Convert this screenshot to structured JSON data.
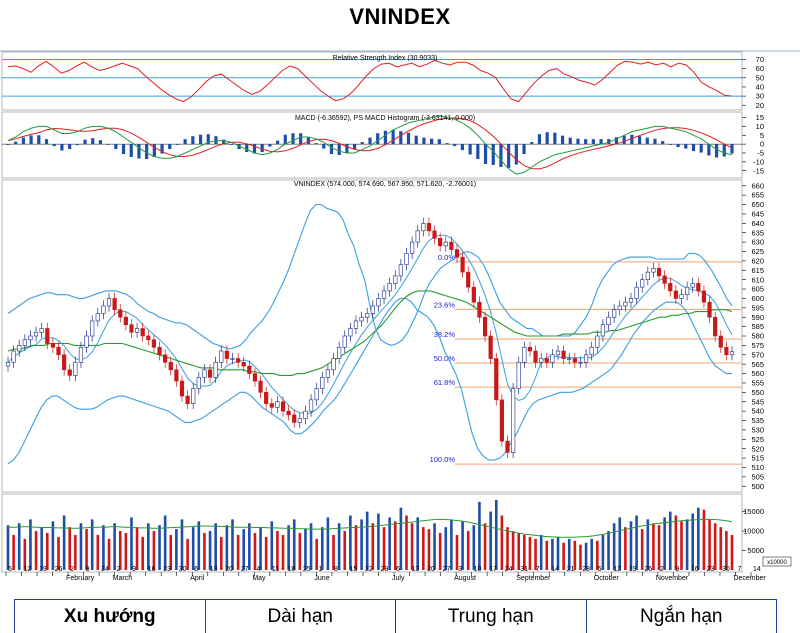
{
  "title": "VNINDEX",
  "chart_data": {
    "type": "candlestick",
    "panels": {
      "rsi": {
        "label": "Relative Strength Index (30.9033)",
        "ticks": [
          70,
          60,
          50,
          40,
          30,
          20
        ],
        "levels": [
          70,
          50,
          30
        ],
        "ylim": [
          17,
          76
        ],
        "values": [
          62,
          63,
          60,
          56,
          63,
          68,
          62,
          55,
          58,
          63,
          67,
          62,
          58,
          60,
          63,
          66,
          63,
          60,
          52,
          45,
          38,
          32,
          27,
          24,
          29,
          37,
          46,
          52,
          54,
          48,
          42,
          36,
          32,
          35,
          42,
          50,
          58,
          63,
          60,
          52,
          44,
          36,
          30,
          25,
          27,
          33,
          42,
          52,
          60,
          65,
          66,
          62,
          64,
          66,
          62,
          65,
          69,
          66,
          64,
          67,
          67,
          64,
          58,
          55,
          50,
          38,
          27,
          24,
          34,
          44,
          52,
          58,
          60,
          54,
          51,
          47,
          45,
          42,
          48,
          56,
          64,
          68,
          67,
          65,
          67,
          64,
          66,
          62,
          66,
          64,
          56,
          45,
          40,
          36,
          31,
          30
        ]
      },
      "macd": {
        "label": "MACD (-6.36592), PS MACD Histogram (-3.63141, 0.000)",
        "ticks": [
          15,
          10,
          5,
          0,
          -5,
          -10,
          -15
        ],
        "ylim": [
          -18,
          17
        ],
        "macd": [
          2,
          4,
          7,
          9,
          10,
          10,
          8,
          6,
          6,
          7,
          9,
          10,
          10,
          9,
          7,
          4,
          1,
          -2,
          -5,
          -7,
          -8,
          -8,
          -7,
          -5,
          -3,
          -1,
          1,
          2,
          2,
          1,
          -1,
          -3,
          -5,
          -6,
          -5,
          -3,
          0,
          2,
          4,
          4,
          3,
          1,
          -2,
          -4,
          -5,
          -5,
          -3,
          -1,
          2,
          5,
          8,
          10,
          12,
          13,
          14,
          15,
          16,
          15,
          14,
          12,
          9,
          5,
          0,
          -4,
          -9,
          -14,
          -17,
          -16,
          -13,
          -10,
          -8,
          -6,
          -5,
          -4,
          -3,
          -2,
          -1,
          0,
          1,
          3,
          5,
          7,
          8,
          9,
          10,
          10,
          9,
          8,
          7,
          5,
          3,
          0,
          -3,
          -5,
          -6
        ]
      },
      "price": {
        "label": "VNINDEX (574.000, 574.690, 567.950, 571.620, -2.76001)",
        "ticks": [
          660,
          655,
          650,
          645,
          640,
          635,
          630,
          625,
          620,
          615,
          610,
          605,
          600,
          595,
          590,
          585,
          580,
          575,
          570,
          565,
          560,
          555,
          550,
          545,
          540,
          535,
          530,
          525,
          520,
          515,
          510,
          505,
          500
        ],
        "ylim": [
          498,
          662
        ],
        "fib_levels": [
          {
            "label": "0.0%",
            "value": 619.5
          },
          {
            "label": "23.6%",
            "value": 594.2
          },
          {
            "label": "38.2%",
            "value": 578.4
          },
          {
            "label": "50.0%",
            "value": 565.6
          },
          {
            "label": "61.8%",
            "value": 552.8
          },
          {
            "label": "100.0%",
            "value": 511.8
          }
        ],
        "close": [
          566,
          572,
          575,
          578,
          580,
          582,
          584,
          576,
          574,
          570,
          562,
          559,
          566,
          574,
          580,
          588,
          592,
          596,
          600,
          594,
          590,
          586,
          582,
          584,
          580,
          578,
          574,
          570,
          566,
          562,
          556,
          548,
          544,
          552,
          558,
          562,
          558,
          566,
          572,
          568,
          568,
          566,
          564,
          560,
          556,
          550,
          544,
          542,
          545,
          540,
          538,
          534,
          536,
          540,
          546,
          552,
          558,
          562,
          568,
          574,
          580,
          584,
          588,
          590,
          592,
          596,
          600,
          604,
          608,
          612,
          618,
          624,
          630,
          636,
          640,
          636,
          632,
          628,
          630,
          626,
          622,
          614,
          606,
          598,
          590,
          580,
          568,
          546,
          524,
          518,
          552,
          566,
          574,
          572,
          566,
          568,
          566,
          570,
          572,
          568,
          568,
          566,
          566,
          570,
          574,
          580,
          586,
          590,
          594,
          596,
          598,
          600,
          606,
          610,
          614,
          616,
          612,
          608,
          604,
          600,
          602,
          606,
          608,
          604,
          598,
          590,
          580,
          574,
          570,
          571.6
        ],
        "bb_upper": [
          592,
          594,
          596,
          598,
          600,
          601,
          602,
          603,
          603,
          602,
          602,
          602,
          601,
          600,
          600,
          601,
          602,
          603,
          604,
          604,
          604,
          603,
          602,
          600,
          597,
          595,
          593,
          592,
          590,
          589,
          588,
          587,
          587,
          586,
          584,
          582,
          580,
          578,
          576,
          575,
          574,
          573,
          574,
          575,
          578,
          582,
          585,
          588,
          592,
          597,
          603,
          609,
          616,
          624,
          632,
          640,
          647,
          650,
          650,
          648,
          647,
          646,
          642,
          634,
          628,
          618,
          610,
          596,
          584,
          578,
          576,
          575,
          576,
          578,
          582,
          588,
          594,
          602,
          608,
          612,
          616,
          618,
          620,
          622,
          624,
          625,
          624,
          622,
          618,
          612,
          605,
          598,
          594,
          590,
          588,
          586,
          584,
          584,
          582,
          580,
          580,
          580,
          580,
          580,
          580,
          582,
          586,
          590,
          596,
          604,
          610,
          614,
          618,
          620,
          621,
          622,
          622,
          622,
          622,
          622,
          621,
          621,
          621,
          621,
          621,
          621,
          624,
          624,
          623,
          620,
          616,
          611,
          606,
          600,
          596
        ],
        "bb_lower": [
          512,
          514,
          518,
          524,
          530,
          536,
          542,
          546,
          548,
          548,
          546,
          544,
          542,
          541,
          541,
          541,
          542,
          544,
          546,
          547,
          548,
          548,
          547,
          546,
          545,
          544,
          543,
          542,
          541,
          540,
          538,
          536,
          534,
          534,
          535,
          536,
          538,
          540,
          542,
          544,
          546,
          548,
          550,
          550,
          548,
          545,
          542,
          540,
          538,
          536,
          534,
          530,
          528,
          528,
          530,
          533,
          536,
          540,
          543,
          546,
          550,
          555,
          560,
          565,
          570,
          575,
          580,
          585,
          590,
          594,
          598,
          600,
          600,
          598,
          594,
          592,
          590,
          586,
          580,
          572,
          566,
          560,
          552,
          540,
          528,
          520,
          516,
          514,
          514,
          515,
          518,
          523,
          528,
          534,
          540,
          544,
          546,
          547,
          548,
          549,
          550,
          550,
          550,
          551,
          552,
          554,
          556,
          558,
          560,
          562,
          566,
          570,
          575,
          580,
          584,
          588,
          591,
          594,
          596,
          598,
          598,
          598,
          596,
          592,
          586,
          580,
          574,
          568,
          564,
          562,
          560,
          560
        ],
        "ma50": [
          572,
          573,
          573,
          574,
          575,
          575,
          575,
          576,
          576,
          576,
          576,
          575,
          575,
          575,
          575,
          575,
          576,
          576,
          576,
          576,
          575,
          574,
          573,
          572,
          571,
          570,
          569,
          568,
          567,
          566,
          565,
          564,
          563,
          563,
          563,
          562,
          562,
          562,
          562,
          562,
          561,
          561,
          560,
          560,
          560,
          559,
          559,
          559,
          560,
          560,
          561,
          562,
          563,
          565,
          567,
          569,
          571,
          573,
          575,
          577,
          580,
          583,
          586,
          590,
          594,
          598,
          601,
          603,
          604,
          604,
          604,
          603,
          602,
          601,
          600,
          599,
          598,
          596,
          594,
          592,
          590,
          588,
          586,
          584,
          582,
          581,
          580,
          580,
          580,
          580,
          580,
          580,
          581,
          581,
          581,
          581,
          581,
          582,
          582,
          582,
          583,
          583,
          584,
          585,
          586,
          587,
          588,
          589,
          590,
          590,
          591,
          591,
          592,
          592,
          593,
          593,
          593,
          594,
          594,
          594,
          593
        ]
      },
      "volume": {
        "ticks": [
          15000,
          10000,
          5000
        ],
        "ylim": [
          0,
          19000
        ],
        "scale_label": "x10000",
        "values": [
          11500,
          9000,
          12000,
          8000,
          13000,
          10000,
          11000,
          9500,
          12500,
          8500,
          14000,
          11000,
          9000,
          12000,
          10500,
          13000,
          9000,
          11500,
          8000,
          12000,
          10000,
          9500,
          13500,
          11000,
          8500,
          12000,
          10000,
          11500,
          14000,
          9000,
          10500,
          13000,
          8000,
          11000,
          12500,
          9500,
          10000,
          12000,
          8500,
          11500,
          13000,
          9000,
          10500,
          12000,
          9500,
          11000,
          8500,
          12500,
          10000,
          9000,
          11500,
          13000,
          9500,
          10500,
          12000,
          8000,
          11000,
          13500,
          9000,
          12000,
          10000,
          14000,
          11500,
          13000,
          15000,
          12000,
          14500,
          11000,
          13500,
          12500,
          16000,
          14000,
          12000,
          13500,
          11000,
          10500,
          12000,
          9500,
          11000,
          13000,
          9000,
          12500,
          10000,
          11500,
          17500,
          12000,
          15000,
          18000,
          14000,
          11000,
          10000,
          9500,
          9000,
          8500,
          8000,
          9000,
          7500,
          8000,
          8500,
          7000,
          8000,
          7500,
          6500,
          7000,
          8000,
          7500,
          9000,
          10000,
          12000,
          13500,
          11000,
          12500,
          14000,
          10500,
          13000,
          12000,
          11500,
          13500,
          15000,
          14000,
          12500,
          13000,
          14500,
          16000,
          15500,
          13000,
          12000,
          11000,
          10000,
          9000
        ],
        "ma": [
          11000,
          11000,
          11100,
          11100,
          11000,
          10900,
          10900,
          10800,
          10800,
          10700,
          10700,
          10800,
          10900,
          11000,
          11000,
          11100,
          11100,
          11000,
          10900,
          10800,
          10800,
          10700,
          10700,
          10800,
          10900,
          11000,
          11100,
          11200,
          11300,
          11300,
          11200,
          11200,
          11100,
          11000,
          11000,
          11000,
          10900,
          10900,
          10800,
          10800,
          10700,
          10700,
          10600,
          10600,
          10500,
          10500,
          10500,
          10600,
          10700,
          10800,
          10900,
          11000,
          11100,
          11200,
          11400,
          11600,
          11800,
          12000,
          12200,
          12400,
          12600,
          12800,
          13000,
          13000,
          12900,
          12700,
          12500,
          12200,
          11800,
          11400,
          11000,
          10600,
          10200,
          9800,
          9500,
          9200,
          9000,
          8800,
          8600,
          8500,
          8400,
          8400,
          8400,
          8500,
          8600,
          8800,
          9100,
          9400,
          9800,
          10200,
          10600,
          11000,
          11300,
          11600,
          11900,
          12100,
          12300,
          12500,
          12700,
          12800,
          12900,
          13000,
          13000,
          12900,
          12700,
          12400
        ]
      }
    },
    "x_axis": {
      "ticks": [
        "5",
        "12",
        "19",
        "26",
        "2",
        "9",
        "24",
        "2",
        "9",
        "16",
        "23",
        "30",
        "6",
        "13",
        "20",
        "27",
        "4",
        "11",
        "18",
        "25",
        "1",
        "8",
        "15",
        "22",
        "29",
        "6",
        "13",
        "20",
        "27",
        "3",
        "10",
        "17",
        "24",
        "31",
        "7",
        "14",
        "21",
        "28",
        "5",
        "12",
        "19",
        "26",
        "2",
        "9",
        "16",
        "23",
        "30",
        "7",
        "14"
      ],
      "months": [
        "February",
        "March",
        "April",
        "May",
        "June",
        "July",
        "August",
        "September",
        "October",
        "November",
        "December"
      ]
    }
  },
  "table": {
    "headers": [
      "Xu hướng",
      "Dài hạn",
      "Trung hạn",
      "Ngắn hạn"
    ]
  }
}
